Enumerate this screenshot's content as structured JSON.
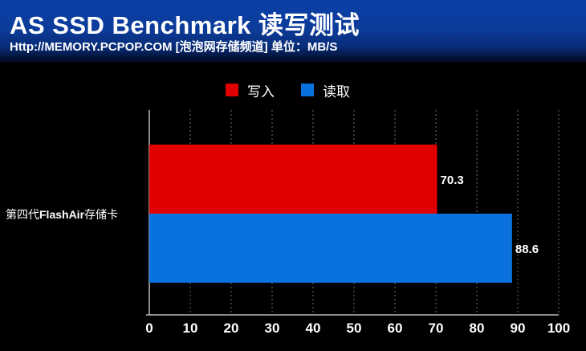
{
  "header": {
    "title": "AS SSD Benchmark 读写测试",
    "subtitle": "Http://MEMORY.PCPOP.COM [泡泡网存储频道] 单位：MB/S"
  },
  "category_label": {
    "prefix": "第四代",
    "brand": "FlashAir",
    "suffix": "存储卡"
  },
  "chart_data": {
    "type": "bar",
    "orientation": "horizontal",
    "categories": [
      "第四代FlashAir存储卡"
    ],
    "series": [
      {
        "name": "写入",
        "values": [
          70.3
        ],
        "color": "#e00000"
      },
      {
        "name": "读取",
        "values": [
          88.6
        ],
        "color": "#0a72de"
      }
    ],
    "xlim": [
      0,
      100
    ],
    "xticks": [
      0,
      10,
      20,
      30,
      40,
      50,
      60,
      70,
      80,
      90,
      100
    ],
    "grid": true,
    "legend_position": "top-center"
  }
}
